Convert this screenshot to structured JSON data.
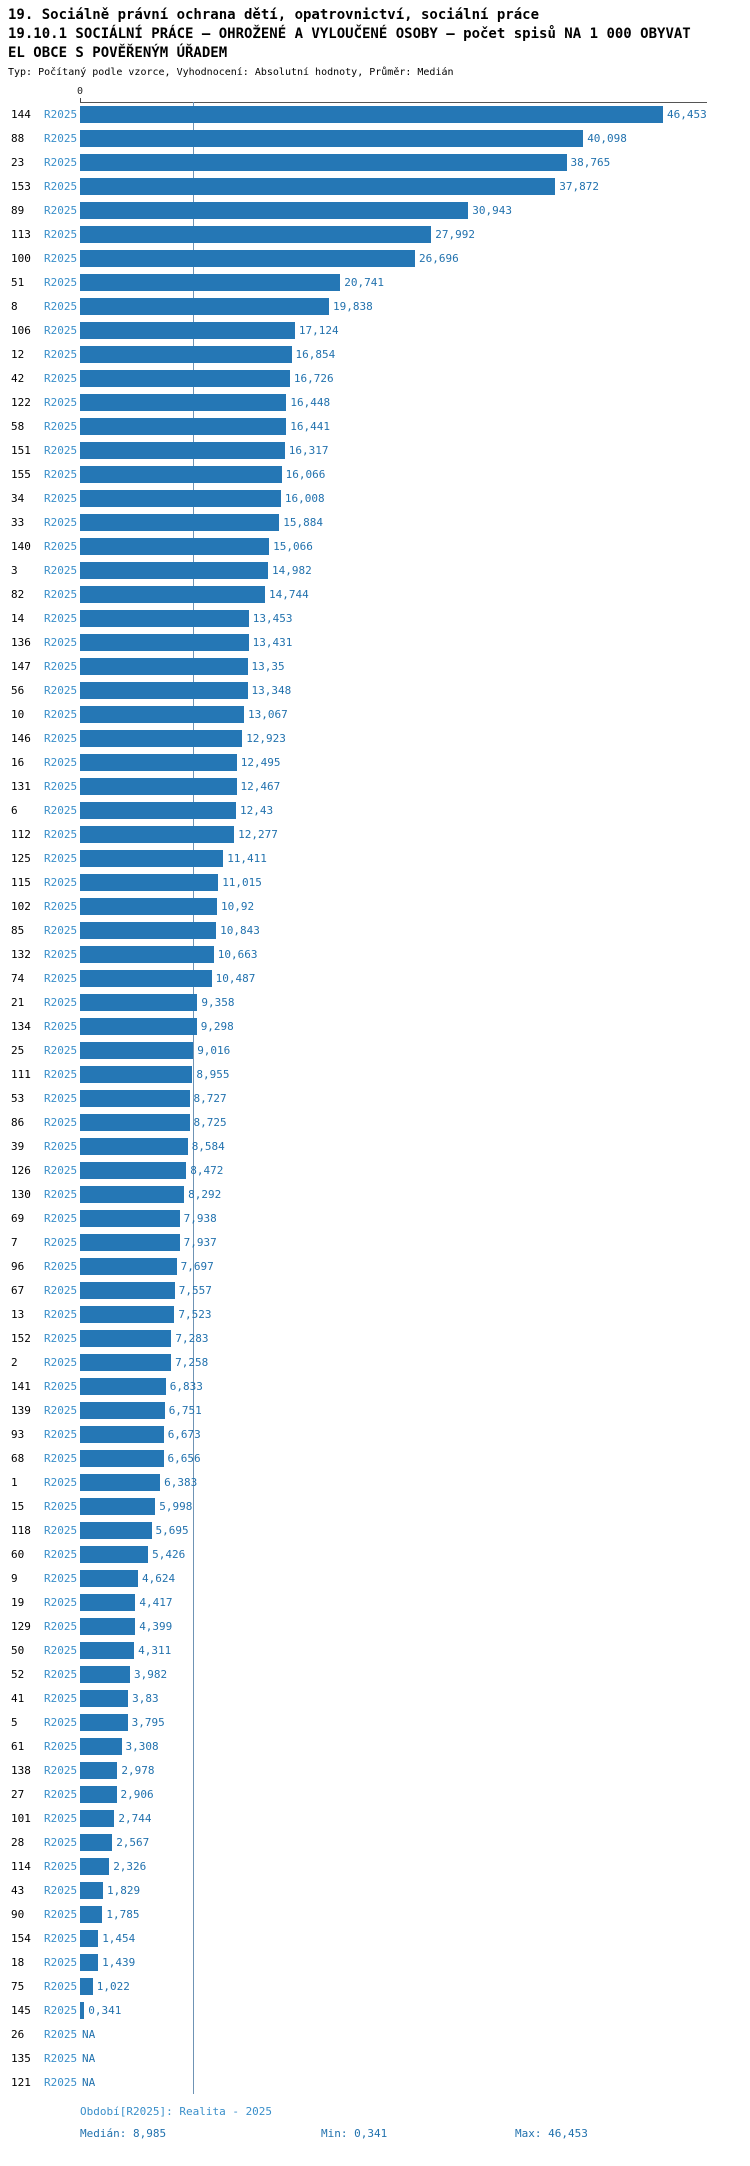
{
  "header": {
    "line1": "19. Sociálně právní ochrana dětí, opatrovnictví, sociální práce",
    "line2": "19.10.1 SOCIÁLNÍ PRÁCE — OHROŽENÉ A VYLOUČENÉ OSOBY — počet spisů NA 1 000 OBYVAT",
    "line3": "EL OBCE S POVĚŘENÝM ÚŘADEM",
    "subtitle": "Typ: Počítaný podle vzorce, Vyhodnocení: Absolutní hodnoty, Průměr: Medián"
  },
  "chart_data": {
    "type": "bar",
    "orientation": "horizontal",
    "title": "19.10.1 SOCIÁLNÍ PRÁCE — OHROŽENÉ A VYLOUČENÉ OSOBY — počet spisů NA 1 000 OBYVATEL OBCE S POVĚŘENÝM ÚŘADEM",
    "series_name": "R2025",
    "axis_zero_label": "0",
    "xlim": [
      0,
      46.453
    ],
    "median_value": 8.985,
    "grid": false,
    "legend": "none",
    "colors": {
      "bar_color": "#2577b5",
      "value_text_color": "#2272ae",
      "series_text_color": "#3a8fca",
      "median_line_color": "#6f94b5"
    },
    "rows": [
      {
        "id": "144",
        "value": 46.453,
        "label": "46,453"
      },
      {
        "id": "88",
        "value": 40.098,
        "label": "40,098"
      },
      {
        "id": "23",
        "value": 38.765,
        "label": "38,765"
      },
      {
        "id": "153",
        "value": 37.872,
        "label": "37,872"
      },
      {
        "id": "89",
        "value": 30.943,
        "label": "30,943"
      },
      {
        "id": "113",
        "value": 27.992,
        "label": "27,992"
      },
      {
        "id": "100",
        "value": 26.696,
        "label": "26,696"
      },
      {
        "id": "51",
        "value": 20.741,
        "label": "20,741"
      },
      {
        "id": "8",
        "value": 19.838,
        "label": "19,838"
      },
      {
        "id": "106",
        "value": 17.124,
        "label": "17,124"
      },
      {
        "id": "12",
        "value": 16.854,
        "label": "16,854"
      },
      {
        "id": "42",
        "value": 16.726,
        "label": "16,726"
      },
      {
        "id": "122",
        "value": 16.448,
        "label": "16,448"
      },
      {
        "id": "58",
        "value": 16.441,
        "label": "16,441"
      },
      {
        "id": "151",
        "value": 16.317,
        "label": "16,317"
      },
      {
        "id": "155",
        "value": 16.066,
        "label": "16,066"
      },
      {
        "id": "34",
        "value": 16.008,
        "label": "16,008"
      },
      {
        "id": "33",
        "value": 15.884,
        "label": "15,884"
      },
      {
        "id": "140",
        "value": 15.066,
        "label": "15,066"
      },
      {
        "id": "3",
        "value": 14.982,
        "label": "14,982"
      },
      {
        "id": "82",
        "value": 14.744,
        "label": "14,744"
      },
      {
        "id": "14",
        "value": 13.453,
        "label": "13,453"
      },
      {
        "id": "136",
        "value": 13.431,
        "label": "13,431"
      },
      {
        "id": "147",
        "value": 13.35,
        "label": "13,35"
      },
      {
        "id": "56",
        "value": 13.348,
        "label": "13,348"
      },
      {
        "id": "10",
        "value": 13.067,
        "label": "13,067"
      },
      {
        "id": "146",
        "value": 12.923,
        "label": "12,923"
      },
      {
        "id": "16",
        "value": 12.495,
        "label": "12,495"
      },
      {
        "id": "131",
        "value": 12.467,
        "label": "12,467"
      },
      {
        "id": "6",
        "value": 12.43,
        "label": "12,43"
      },
      {
        "id": "112",
        "value": 12.277,
        "label": "12,277"
      },
      {
        "id": "125",
        "value": 11.411,
        "label": "11,411"
      },
      {
        "id": "115",
        "value": 11.015,
        "label": "11,015"
      },
      {
        "id": "102",
        "value": 10.92,
        "label": "10,92"
      },
      {
        "id": "85",
        "value": 10.843,
        "label": "10,843"
      },
      {
        "id": "132",
        "value": 10.663,
        "label": "10,663"
      },
      {
        "id": "74",
        "value": 10.487,
        "label": "10,487"
      },
      {
        "id": "21",
        "value": 9.358,
        "label": "9,358"
      },
      {
        "id": "134",
        "value": 9.298,
        "label": "9,298"
      },
      {
        "id": "25",
        "value": 9.016,
        "label": "9,016"
      },
      {
        "id": "111",
        "value": 8.955,
        "label": "8,955"
      },
      {
        "id": "53",
        "value": 8.727,
        "label": "8,727"
      },
      {
        "id": "86",
        "value": 8.725,
        "label": "8,725"
      },
      {
        "id": "39",
        "value": 8.584,
        "label": "8,584"
      },
      {
        "id": "126",
        "value": 8.472,
        "label": "8,472"
      },
      {
        "id": "130",
        "value": 8.292,
        "label": "8,292"
      },
      {
        "id": "69",
        "value": 7.938,
        "label": "7,938"
      },
      {
        "id": "7",
        "value": 7.937,
        "label": "7,937"
      },
      {
        "id": "96",
        "value": 7.697,
        "label": "7,697"
      },
      {
        "id": "67",
        "value": 7.557,
        "label": "7,557"
      },
      {
        "id": "13",
        "value": 7.523,
        "label": "7,523"
      },
      {
        "id": "152",
        "value": 7.283,
        "label": "7,283"
      },
      {
        "id": "2",
        "value": 7.258,
        "label": "7,258"
      },
      {
        "id": "141",
        "value": 6.833,
        "label": "6,833"
      },
      {
        "id": "139",
        "value": 6.751,
        "label": "6,751"
      },
      {
        "id": "93",
        "value": 6.673,
        "label": "6,673"
      },
      {
        "id": "68",
        "value": 6.656,
        "label": "6,656"
      },
      {
        "id": "1",
        "value": 6.383,
        "label": "6,383"
      },
      {
        "id": "15",
        "value": 5.998,
        "label": "5,998"
      },
      {
        "id": "118",
        "value": 5.695,
        "label": "5,695"
      },
      {
        "id": "60",
        "value": 5.426,
        "label": "5,426"
      },
      {
        "id": "9",
        "value": 4.624,
        "label": "4,624"
      },
      {
        "id": "19",
        "value": 4.417,
        "label": "4,417"
      },
      {
        "id": "129",
        "value": 4.399,
        "label": "4,399"
      },
      {
        "id": "50",
        "value": 4.311,
        "label": "4,311"
      },
      {
        "id": "52",
        "value": 3.982,
        "label": "3,982"
      },
      {
        "id": "41",
        "value": 3.83,
        "label": "3,83"
      },
      {
        "id": "5",
        "value": 3.795,
        "label": "3,795"
      },
      {
        "id": "61",
        "value": 3.308,
        "label": "3,308"
      },
      {
        "id": "138",
        "value": 2.978,
        "label": "2,978"
      },
      {
        "id": "27",
        "value": 2.906,
        "label": "2,906"
      },
      {
        "id": "101",
        "value": 2.744,
        "label": "2,744"
      },
      {
        "id": "28",
        "value": 2.567,
        "label": "2,567"
      },
      {
        "id": "114",
        "value": 2.326,
        "label": "2,326"
      },
      {
        "id": "43",
        "value": 1.829,
        "label": "1,829"
      },
      {
        "id": "90",
        "value": 1.785,
        "label": "1,785"
      },
      {
        "id": "154",
        "value": 1.454,
        "label": "1,454"
      },
      {
        "id": "18",
        "value": 1.439,
        "label": "1,439"
      },
      {
        "id": "75",
        "value": 1.022,
        "label": "1,022"
      },
      {
        "id": "145",
        "value": 0.341,
        "label": "0,341"
      },
      {
        "id": "26",
        "value": null,
        "label": "NA"
      },
      {
        "id": "135",
        "value": null,
        "label": "NA"
      },
      {
        "id": "121",
        "value": null,
        "label": "NA"
      }
    ]
  },
  "footer": {
    "period": "Období[R2025]: Realita - 2025",
    "median": "Medián: 8,985",
    "min": "Min: 0,341",
    "max": "Max: 46,453"
  }
}
